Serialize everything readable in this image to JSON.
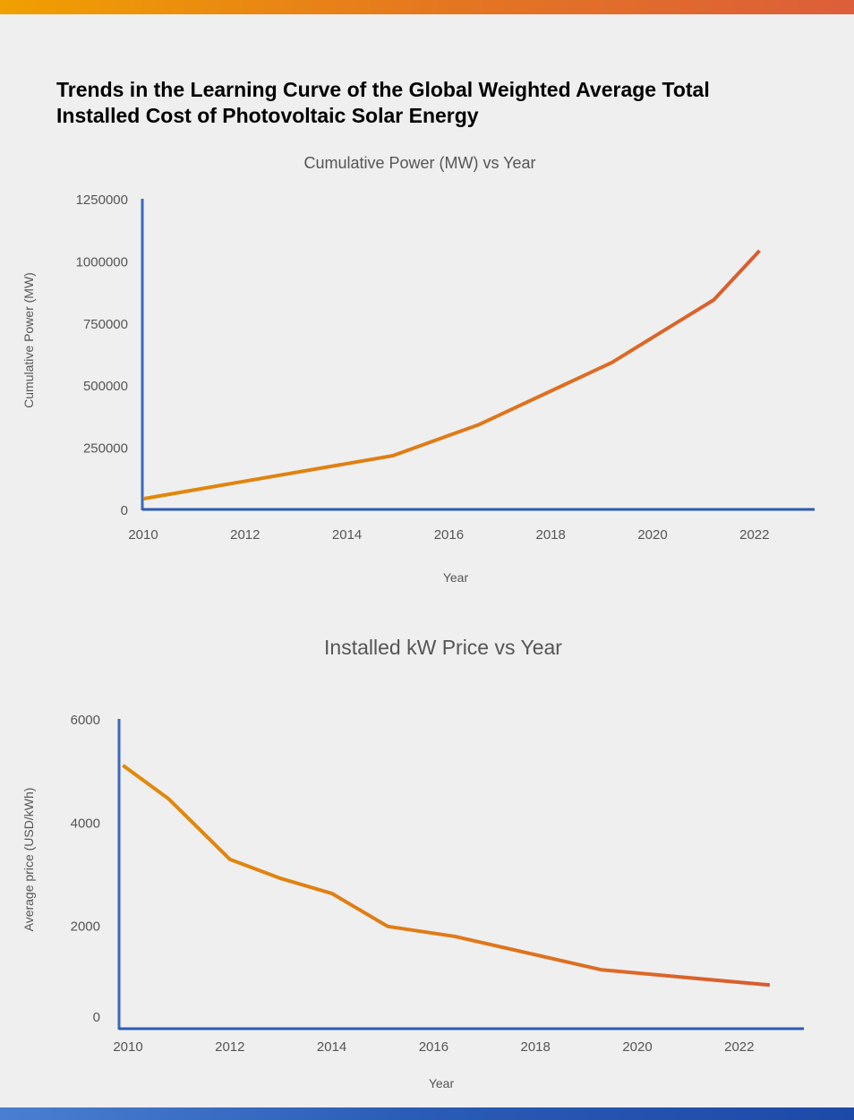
{
  "title": "Trends in the Learning Curve of the Global Weighted Average Total Installed Cost of Photovoltaic Solar Energy",
  "colors": {
    "axis": "#3a68c0",
    "line_start": "#e08a0a",
    "line_end": "#d85c30"
  },
  "chart_data": [
    {
      "type": "line",
      "title": "Cumulative Power (MW) vs Year",
      "xlabel": "Year",
      "ylabel": "Cumulative Power (MW)",
      "xlim": [
        2010,
        2023.3
      ],
      "ylim": [
        0,
        1250000
      ],
      "x_ticks": [
        "2010",
        "2012",
        "2014",
        "2016",
        "2018",
        "2020",
        "2022"
      ],
      "y_ticks": [
        "0",
        "250000",
        "500000",
        "750000",
        "1000000",
        "1250000"
      ],
      "series": [
        {
          "name": "Cumulative Power",
          "x": [
            2010,
            2014.9,
            2016.6,
            2019.2,
            2021.2,
            2022.1
          ],
          "y": [
            43000,
            216000,
            342000,
            591000,
            843000,
            1041000
          ]
        }
      ],
      "grid": false
    },
    {
      "type": "line",
      "title": "Installed kW Price vs Year",
      "xlabel": "Year",
      "ylabel": "Average price (USD/kWh)",
      "xlim": [
        2009.8,
        2023.3
      ],
      "ylim": [
        0,
        6000
      ],
      "x_ticks": [
        "2010",
        "2012",
        "2014",
        "2016",
        "2018",
        "2020",
        "2022"
      ],
      "y_ticks": [
        "0",
        "2000",
        "4000",
        "6000"
      ],
      "series": [
        {
          "name": "Average price",
          "x": [
            2009.9,
            2010.8,
            2012,
            2013,
            2014,
            2015.1,
            2016.4,
            2019.3,
            2022.6
          ],
          "y": [
            5100,
            4450,
            3280,
            2910,
            2620,
            1980,
            1790,
            1140,
            845
          ]
        }
      ],
      "grid": false
    }
  ]
}
